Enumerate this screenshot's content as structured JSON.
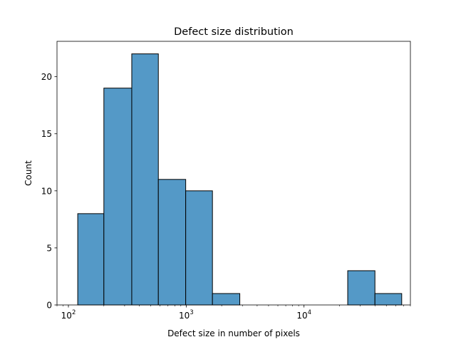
{
  "chart_data": {
    "type": "bar",
    "title": "Defect size distribution",
    "xlabel": "Defect size in number of pixels",
    "ylabel": "Count",
    "x_scale": "log",
    "xlim": [
      80,
      80000
    ],
    "ylim": [
      0,
      23.1
    ],
    "grid": false,
    "bar_color": "#5499c7",
    "edge_color": "#000000",
    "bins": [
      {
        "x0": 120,
        "x1": 200,
        "count": 8
      },
      {
        "x0": 200,
        "x1": 345,
        "count": 19
      },
      {
        "x0": 345,
        "x1": 580,
        "count": 22
      },
      {
        "x0": 580,
        "x1": 990,
        "count": 11
      },
      {
        "x0": 990,
        "x1": 1670,
        "count": 10
      },
      {
        "x0": 1670,
        "x1": 2850,
        "count": 1
      },
      {
        "x0": 2850,
        "x1": 4850,
        "count": 0
      },
      {
        "x0": 4850,
        "x1": 8200,
        "count": 0
      },
      {
        "x0": 8200,
        "x1": 13900,
        "count": 0
      },
      {
        "x0": 13900,
        "x1": 23500,
        "count": 0
      },
      {
        "x0": 23500,
        "x1": 40000,
        "count": 3
      },
      {
        "x0": 40000,
        "x1": 67500,
        "count": 1
      }
    ],
    "x_ticks": [
      {
        "value": 100,
        "base": "10",
        "exp": "2"
      },
      {
        "value": 1000,
        "base": "10",
        "exp": "3"
      },
      {
        "value": 10000,
        "base": "10",
        "exp": "4"
      }
    ],
    "y_ticks": [
      {
        "value": 0,
        "label": "0"
      },
      {
        "value": 5,
        "label": "5"
      },
      {
        "value": 10,
        "label": "10"
      },
      {
        "value": 15,
        "label": "15"
      },
      {
        "value": 20,
        "label": "20"
      }
    ]
  }
}
